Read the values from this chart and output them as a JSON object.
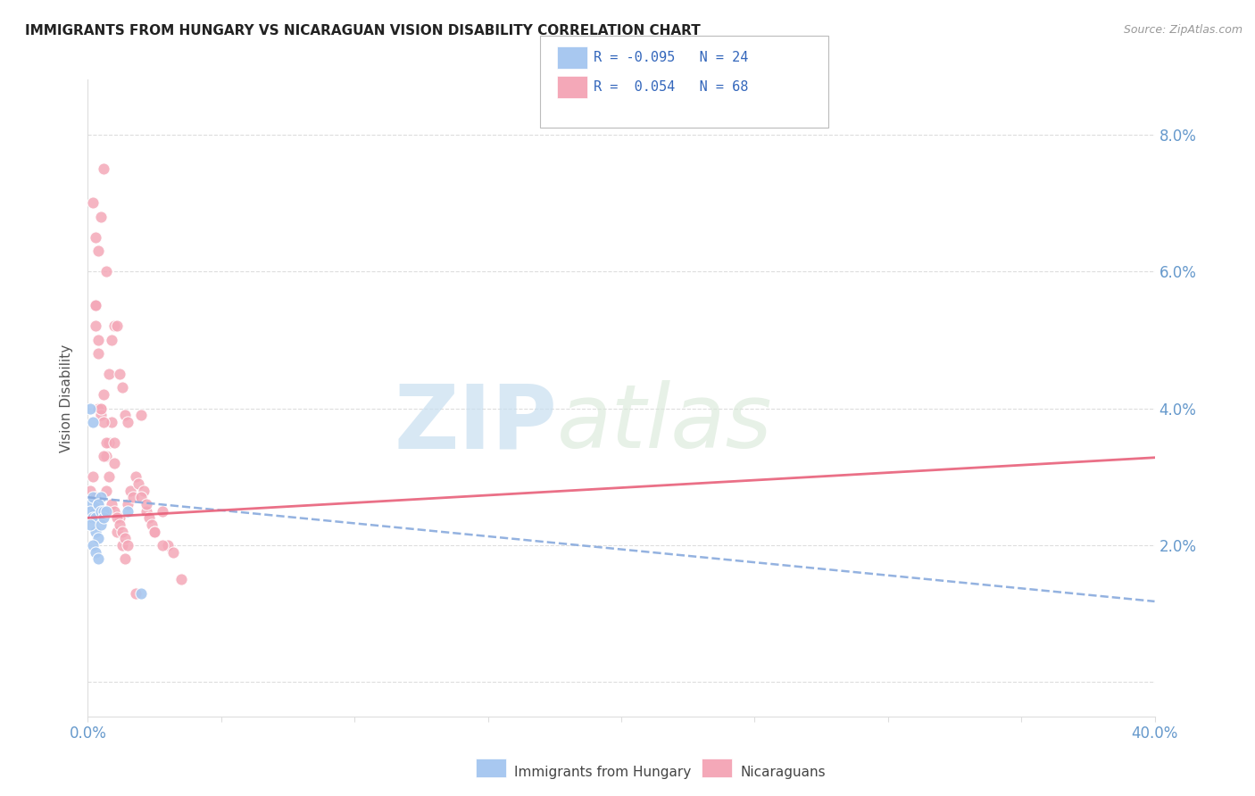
{
  "title": "IMMIGRANTS FROM HUNGARY VS NICARAGUAN VISION DISABILITY CORRELATION CHART",
  "source": "Source: ZipAtlas.com",
  "ylabel": "Vision Disability",
  "xlim": [
    0.0,
    0.4
  ],
  "ylim": [
    -0.005,
    0.088
  ],
  "ytick_vals": [
    0.0,
    0.02,
    0.04,
    0.06,
    0.08
  ],
  "ytick_labels": [
    "",
    "2.0%",
    "4.0%",
    "6.0%",
    "8.0%"
  ],
  "xtick_positions": [
    0.0,
    0.05,
    0.1,
    0.15,
    0.2,
    0.25,
    0.3,
    0.35,
    0.4
  ],
  "xtick_labels": [
    "0.0%",
    "",
    "",
    "",
    "",
    "",
    "",
    "",
    "40.0%"
  ],
  "blue_color": "#a8c8f0",
  "pink_color": "#f4a8b8",
  "blue_line_color": "#88aadd",
  "pink_line_color": "#e8607a",
  "tick_color": "#6699cc",
  "grid_color": "#dddddd",
  "blue_scatter_x": [
    0.001,
    0.002,
    0.003,
    0.004,
    0.005,
    0.001,
    0.002,
    0.003,
    0.004,
    0.005,
    0.006,
    0.001,
    0.002,
    0.003,
    0.004,
    0.001,
    0.002,
    0.003,
    0.004,
    0.005,
    0.006,
    0.007,
    0.015,
    0.02
  ],
  "blue_scatter_y": [
    0.026,
    0.027,
    0.025,
    0.026,
    0.027,
    0.025,
    0.024,
    0.024,
    0.026,
    0.025,
    0.025,
    0.04,
    0.038,
    0.022,
    0.021,
    0.023,
    0.02,
    0.019,
    0.018,
    0.023,
    0.024,
    0.025,
    0.025,
    0.013
  ],
  "pink_scatter_x": [
    0.001,
    0.002,
    0.003,
    0.003,
    0.004,
    0.004,
    0.005,
    0.005,
    0.006,
    0.006,
    0.007,
    0.007,
    0.008,
    0.008,
    0.009,
    0.009,
    0.01,
    0.01,
    0.011,
    0.011,
    0.012,
    0.012,
    0.013,
    0.013,
    0.014,
    0.014,
    0.015,
    0.015,
    0.003,
    0.004,
    0.005,
    0.006,
    0.007,
    0.008,
    0.009,
    0.01,
    0.011,
    0.012,
    0.013,
    0.014,
    0.015,
    0.016,
    0.017,
    0.018,
    0.019,
    0.02,
    0.021,
    0.022,
    0.023,
    0.024,
    0.025,
    0.028,
    0.03,
    0.032,
    0.02,
    0.022,
    0.025,
    0.01,
    0.018,
    0.028,
    0.035,
    0.002,
    0.003,
    0.003,
    0.004,
    0.005,
    0.006,
    0.007
  ],
  "pink_scatter_y": [
    0.028,
    0.03,
    0.027,
    0.055,
    0.063,
    0.048,
    0.04,
    0.068,
    0.042,
    0.075,
    0.033,
    0.06,
    0.035,
    0.045,
    0.038,
    0.05,
    0.052,
    0.032,
    0.052,
    0.022,
    0.045,
    0.024,
    0.043,
    0.02,
    0.039,
    0.018,
    0.038,
    0.026,
    0.055,
    0.04,
    0.039,
    0.038,
    0.035,
    0.03,
    0.026,
    0.025,
    0.024,
    0.023,
    0.022,
    0.021,
    0.02,
    0.028,
    0.027,
    0.03,
    0.029,
    0.039,
    0.028,
    0.025,
    0.024,
    0.023,
    0.022,
    0.025,
    0.02,
    0.019,
    0.027,
    0.026,
    0.022,
    0.035,
    0.013,
    0.02,
    0.015,
    0.07,
    0.065,
    0.052,
    0.05,
    0.04,
    0.033,
    0.028
  ],
  "blue_trend_x": [
    0.0,
    0.4
  ],
  "blue_trend_y_start": 0.027,
  "blue_trend_slope": -0.038,
  "pink_trend_x": [
    0.0,
    0.4
  ],
  "pink_trend_y_start": 0.024,
  "pink_trend_slope": 0.022,
  "legend_items": [
    {
      "color": "#a8c8f0",
      "text": "R = -0.095   N = 24"
    },
    {
      "color": "#f4a8b8",
      "text": "R =  0.054   N = 68"
    }
  ],
  "bottom_legend": [
    {
      "color": "#a8c8f0",
      "label": "Immigrants from Hungary"
    },
    {
      "color": "#f4a8b8",
      "label": "Nicaraguans"
    }
  ]
}
